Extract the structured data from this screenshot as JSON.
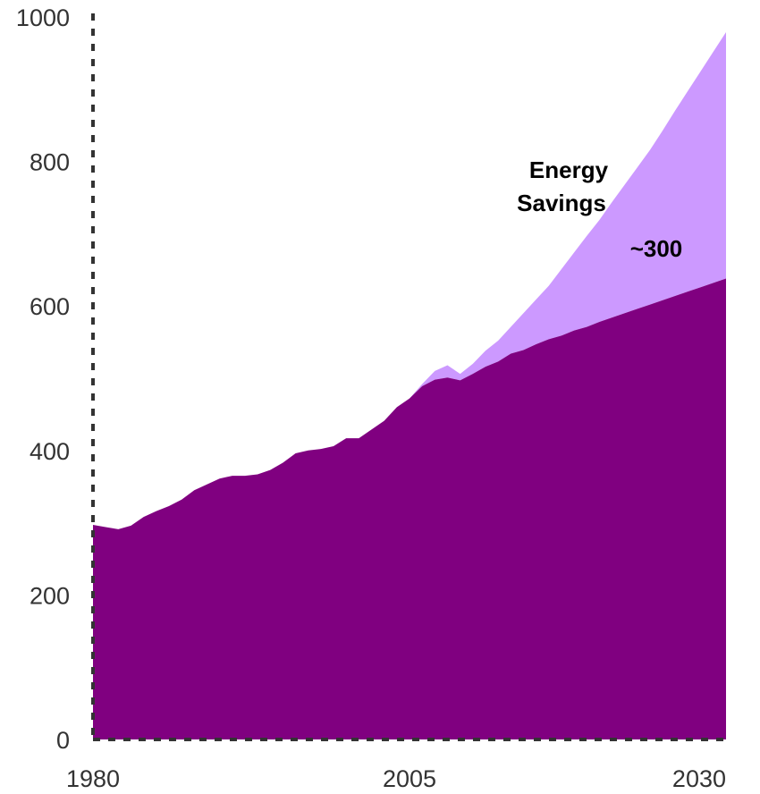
{
  "chart_data": {
    "type": "area",
    "stacked": true,
    "xlim": [
      1980,
      2030
    ],
    "ylim": [
      0,
      1000
    ],
    "grid": false,
    "x_ticks": [
      {
        "value": 1980,
        "label": "1980"
      },
      {
        "value": 2005,
        "label": "2005"
      },
      {
        "value": 2030,
        "label": "2030"
      }
    ],
    "y_ticks": [
      {
        "value": 0,
        "label": "0"
      },
      {
        "value": 200,
        "label": "200"
      },
      {
        "value": 400,
        "label": "400"
      },
      {
        "value": 600,
        "label": "600"
      },
      {
        "value": 800,
        "label": "800"
      },
      {
        "value": 1000,
        "label": "1000"
      }
    ],
    "colors": {
      "base": "#800080",
      "savings": "#cc99ff",
      "axis": "#333333"
    },
    "annotations": {
      "savings_label_line1": "Energy",
      "savings_label_line2": "Savings",
      "savings_value": "~300"
    },
    "series": [
      {
        "color": "#800080",
        "x": [
          1980,
          1981,
          1982,
          1983,
          1984,
          1985,
          1986,
          1987,
          1988,
          1989,
          1990,
          1991,
          1992,
          1993,
          1994,
          1995,
          1996,
          1997,
          1998,
          1999,
          2000,
          2001,
          2002,
          2003,
          2004,
          2005,
          2006,
          2007,
          2008,
          2009,
          2010,
          2011,
          2012,
          2013,
          2014,
          2015,
          2016,
          2017,
          2018,
          2019,
          2020,
          2021,
          2022,
          2023,
          2024,
          2025,
          2026,
          2027,
          2028,
          2029,
          2030
        ],
        "values": [
          297,
          294,
          291,
          296,
          308,
          316,
          323,
          332,
          345,
          353,
          361,
          365,
          365,
          367,
          373,
          383,
          396,
          400,
          402,
          406,
          417,
          417,
          429,
          441,
          460,
          472,
          489,
          498,
          501,
          497,
          506,
          516,
          523,
          534,
          539,
          547,
          554,
          559,
          566,
          571,
          578,
          584,
          590,
          596,
          602,
          608,
          614,
          620,
          626,
          632,
          638
        ]
      },
      {
        "color": "#cc99ff",
        "x": [
          2005,
          2006,
          2007,
          2008,
          2009,
          2010,
          2011,
          2012,
          2013,
          2014,
          2015,
          2016,
          2017,
          2018,
          2019,
          2020,
          2021,
          2022,
          2023,
          2024,
          2025,
          2026,
          2027,
          2028,
          2029,
          2030
        ],
        "total": [
          472,
          492,
          510,
          518,
          506,
          520,
          538,
          552,
          571,
          590,
          609,
          628,
          651,
          674,
          697,
          719,
          744,
          768,
          792,
          816,
          843,
          871,
          898,
          925,
          952,
          979
        ],
        "values": [
          0,
          3,
          12,
          17,
          9,
          14,
          22,
          29,
          37,
          51,
          62,
          74,
          92,
          108,
          126,
          141,
          160,
          178,
          196,
          214,
          235,
          257,
          278,
          299,
          320,
          341
        ]
      }
    ]
  }
}
